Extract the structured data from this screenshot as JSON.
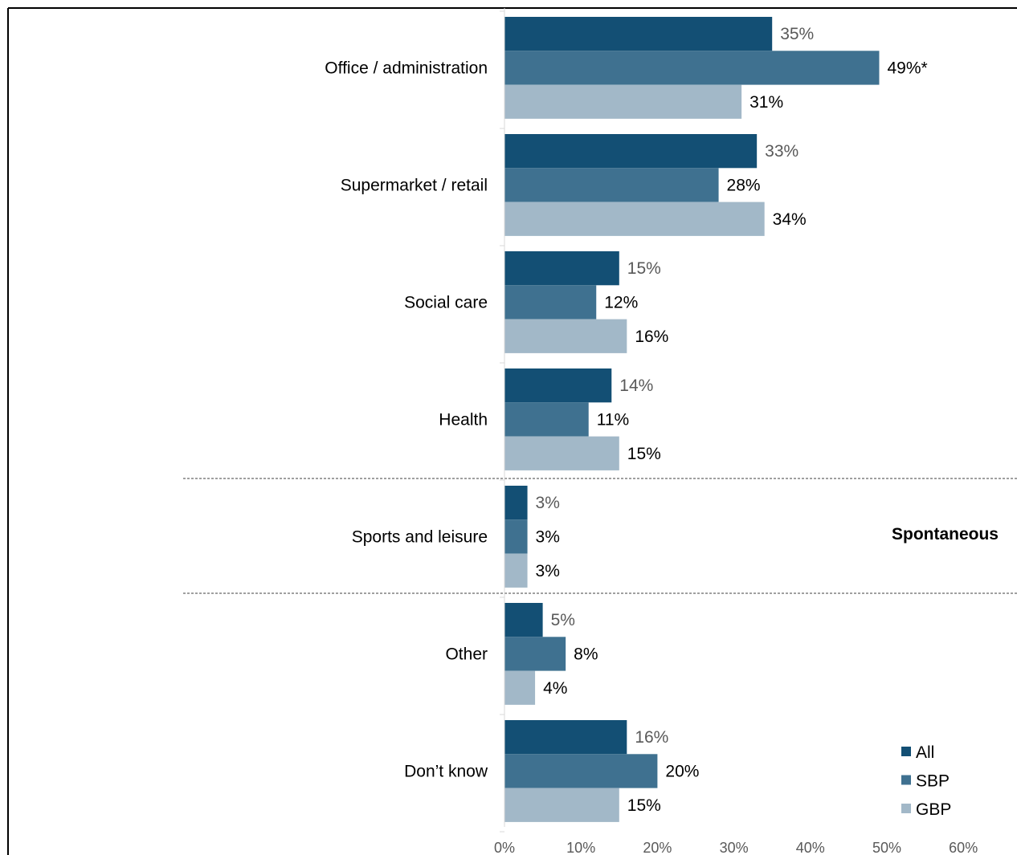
{
  "chart_data": {
    "type": "bar",
    "orientation": "horizontal",
    "categories": [
      "Office / administration",
      "Supermarket / retail",
      "Social care",
      "Health",
      "Sports and leisure",
      "Other",
      "Don’t know"
    ],
    "series": [
      {
        "name": "All",
        "values": [
          35,
          33,
          15,
          14,
          3,
          5,
          16
        ],
        "labels": [
          "35%",
          "33%",
          "15%",
          "14%",
          "3%",
          "5%",
          "16%"
        ],
        "color": "#134f74",
        "label_color": "#595959"
      },
      {
        "name": "SBP",
        "values": [
          49,
          28,
          12,
          11,
          3,
          8,
          20
        ],
        "labels": [
          "49%*",
          "28%",
          "12%",
          "11%",
          "3%",
          "8%",
          "20%"
        ],
        "color": "#3f7190",
        "label_color": "#000000"
      },
      {
        "name": "GBP",
        "values": [
          31,
          34,
          16,
          15,
          3,
          4,
          15
        ],
        "labels": [
          "31%",
          "34%",
          "16%",
          "15%",
          "3%",
          "4%",
          "15%"
        ],
        "color": "#a2b8c8",
        "label_color": "#000000"
      }
    ],
    "xlim": [
      0,
      60
    ],
    "x_ticks": [
      "0%",
      "10%",
      "20%",
      "30%",
      "40%",
      "50%",
      "60%"
    ],
    "annotation": "Spontaneous",
    "legend_position": "bottom-right",
    "grid": false
  }
}
